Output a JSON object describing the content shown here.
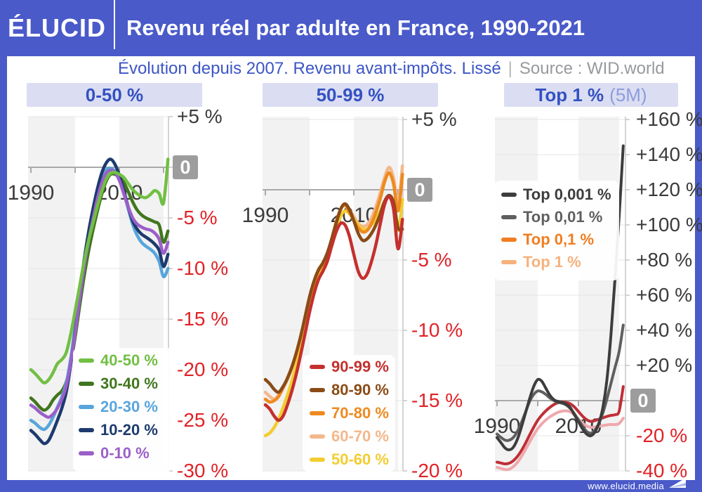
{
  "header": {
    "logo": "ÉLUCID",
    "title": "Revenu réel par adulte en France, 1990-2021"
  },
  "subtitle": {
    "left": "Évolution depuis 2007. Revenu avant-impôts. Lissé",
    "separator": "|",
    "right": "Source : WID.world"
  },
  "footer": {
    "url": "www.elucid.media"
  },
  "colors": {
    "brand_blue": "#4a5ac9",
    "band_bg": "#dbdef2",
    "band_text": "#3451c1",
    "band_suffix": "#8d9cdc",
    "positive_label": "#3b3b3b",
    "negative_label": "#e02227",
    "zero_box_bg": "#9d9d9d",
    "grid_stripe": "#f2f2f2",
    "gridline": "#e4e4e4",
    "axis_line": "#c6c6c6",
    "zero_axis": "#a9a9a9",
    "year_label": "#3b3b3b"
  },
  "chart_data": [
    {
      "type": "line",
      "id": "panel-0-50",
      "title": "0-50 %",
      "title_suffix": "",
      "xlabel": "",
      "ylabel": "",
      "x": [
        1990,
        1991,
        1992,
        1993,
        1994,
        1995,
        1996,
        1997,
        1998,
        1999,
        2000,
        2001,
        2002,
        2003,
        2004,
        2005,
        2006,
        2007,
        2008,
        2009,
        2010,
        2011,
        2012,
        2013,
        2014,
        2015,
        2016,
        2017,
        2018,
        2019,
        2020,
        2021
      ],
      "x_tick_years": [
        1990,
        2000,
        2010,
        2020
      ],
      "x_labels": [
        {
          "text": "1990",
          "year": 1990
        },
        {
          "text": "2010",
          "year": 2010
        }
      ],
      "ylim": [
        -30,
        5
      ],
      "y_labels": [
        {
          "text": "+5 %",
          "value": 5
        },
        {
          "text": "0",
          "value": 0,
          "boxed": true
        },
        {
          "text": "-5 %",
          "value": -5
        },
        {
          "text": "-10 %",
          "value": -10
        },
        {
          "text": "-15 %",
          "value": -15
        },
        {
          "text": "-20 %",
          "value": -20
        },
        {
          "text": "-25 %",
          "value": -25
        },
        {
          "text": "-30 %",
          "value": -30
        }
      ],
      "series": [
        {
          "name": "40-50 %",
          "color": "#72bf44",
          "values": [
            -20,
            -20.4,
            -20.9,
            -21.3,
            -21,
            -20.3,
            -19.4,
            -19,
            -18.3,
            -16.5,
            -14.2,
            -11.8,
            -9.4,
            -7.3,
            -5.6,
            -3.9,
            -2.4,
            -1.2,
            -0.6,
            -0.5,
            -0.7,
            -1,
            -1.6,
            -2.2,
            -2.6,
            -2.9,
            -3,
            -2.7,
            -2.3,
            -2.6,
            -3.5,
            0.8
          ]
        },
        {
          "name": "30-40 %",
          "color": "#41761e",
          "values": [
            -22.8,
            -23.2,
            -23.7,
            -24,
            -23.7,
            -23,
            -22.5,
            -22.1,
            -21.2,
            -19.4,
            -16.8,
            -13.8,
            -10.9,
            -8.4,
            -6.3,
            -4.4,
            -2.7,
            -1.4,
            -0.7,
            -0.7,
            -1,
            -1.5,
            -2.4,
            -3.4,
            -4.2,
            -4.7,
            -5,
            -5.2,
            -5.4,
            -5.7,
            -7.4,
            -6.3
          ]
        },
        {
          "name": "20-30 %",
          "color": "#58a5dc",
          "values": [
            -25,
            -25.3,
            -25.7,
            -25.9,
            -25.5,
            -24.7,
            -23.7,
            -22.7,
            -21.3,
            -18.9,
            -15.8,
            -12.5,
            -9.3,
            -6.7,
            -4.6,
            -2.7,
            -1.2,
            -0.3,
            -0.1,
            -0.4,
            -1.2,
            -2.5,
            -4.1,
            -5.6,
            -6.7,
            -7.4,
            -7.8,
            -8.1,
            -8.5,
            -9.3,
            -10.8,
            -10
          ]
        },
        {
          "name": "10-20 %",
          "color": "#1d3a6e",
          "values": [
            -26,
            -26.4,
            -26.9,
            -27.3,
            -27,
            -26.1,
            -25,
            -23.8,
            -22.2,
            -19.5,
            -16.2,
            -12.7,
            -9.3,
            -6.5,
            -4.2,
            -2.2,
            -0.6,
            0.4,
            0.8,
            0.3,
            -0.8,
            -2.3,
            -3.9,
            -5.3,
            -6.1,
            -6.6,
            -6.9,
            -7.2,
            -7.6,
            -8.2,
            -9.8,
            -8.6
          ]
        },
        {
          "name": "0-10 %",
          "color": "#9a5fc9",
          "values": [
            -23.5,
            -23.8,
            -24.2,
            -24.5,
            -24.7,
            -24.4,
            -23.8,
            -22.9,
            -21.6,
            -19.3,
            -16.4,
            -13.1,
            -10,
            -7.4,
            -5.2,
            -3.2,
            -1.6,
            -0.6,
            -0.3,
            -0.5,
            -1.3,
            -2.6,
            -3.9,
            -5,
            -5.6,
            -5.9,
            -6.1,
            -6.2,
            -6.5,
            -7.1,
            -8.5,
            -7.4
          ]
        }
      ]
    },
    {
      "type": "line",
      "id": "panel-50-99",
      "title": "50-99 %",
      "title_suffix": "",
      "xlabel": "",
      "ylabel": "",
      "x": [
        1990,
        1991,
        1992,
        1993,
        1994,
        1995,
        1996,
        1997,
        1998,
        1999,
        2000,
        2001,
        2002,
        2003,
        2004,
        2005,
        2006,
        2007,
        2008,
        2009,
        2010,
        2011,
        2012,
        2013,
        2014,
        2015,
        2016,
        2017,
        2018,
        2019,
        2020,
        2021
      ],
      "x_tick_years": [
        1990,
        2000,
        2010,
        2020
      ],
      "x_labels": [
        {
          "text": "1990",
          "year": 1990
        },
        {
          "text": "2010",
          "year": 2010
        }
      ],
      "ylim": [
        -20,
        5
      ],
      "y_labels": [
        {
          "text": "+5 %",
          "value": 5
        },
        {
          "text": "0",
          "value": 0,
          "boxed": true
        },
        {
          "text": "-5 %",
          "value": -5
        },
        {
          "text": "-10 %",
          "value": -10
        },
        {
          "text": "-15 %",
          "value": -15
        },
        {
          "text": "-20 %",
          "value": -20
        }
      ],
      "series": [
        {
          "name": "90-99 %",
          "color": "#c4302e",
          "values": [
            -15.3,
            -15.6,
            -16.1,
            -16.4,
            -16.1,
            -15.3,
            -14.3,
            -13.1,
            -11.7,
            -10.2,
            -8.7,
            -7.4,
            -6.4,
            -5.8,
            -5.1,
            -4,
            -3,
            -2.4,
            -2.5,
            -3.3,
            -4.6,
            -5.8,
            -6.3,
            -6,
            -5.1,
            -3.9,
            -2.4,
            -1,
            -0.5,
            -1.4,
            -4.2,
            -2.1
          ]
        },
        {
          "name": "80-90 %",
          "color": "#8a4b16",
          "values": [
            -13.5,
            -13.8,
            -14.2,
            -14.4,
            -14,
            -13.4,
            -12.6,
            -11.6,
            -10.4,
            -9,
            -7.6,
            -6.5,
            -5.7,
            -5.2,
            -4.5,
            -3.5,
            -2.4,
            -1.4,
            -1,
            -1.4,
            -2.2,
            -3.1,
            -3.6,
            -3.5,
            -3.1,
            -2.5,
            -1.7,
            -0.8,
            -0.4,
            -0.9,
            -2.7,
            -2.8
          ]
        },
        {
          "name": "70-80 %",
          "color": "#ee8a20",
          "values": [
            -14.9,
            -15.1,
            -15,
            -14.7,
            -14.1,
            -13.4,
            -12.6,
            -11.6,
            -10.4,
            -9.1,
            -7.7,
            -6.6,
            -5.8,
            -5.3,
            -4.6,
            -3.5,
            -2.3,
            -1.4,
            -1.1,
            -1.6,
            -2.2,
            -2.7,
            -3,
            -2.9,
            -2.4,
            -1.6,
            -0.6,
            0.6,
            1.2,
            0.4,
            -1.5,
            1.1
          ]
        },
        {
          "name": "60-70 %",
          "color": "#f3b88c",
          "values": [
            -14.4,
            -14.7,
            -14.9,
            -14.6,
            -14.1,
            -13.5,
            -12.7,
            -11.7,
            -10.5,
            -9.2,
            -7.8,
            -6.7,
            -5.9,
            -5.4,
            -4.7,
            -3.6,
            -2.4,
            -1.4,
            -1,
            -1.4,
            -1.9,
            -2.4,
            -2.6,
            -2.5,
            -2,
            -1.2,
            -0.2,
            0.9,
            1.6,
            0.8,
            -1,
            1.7
          ]
        },
        {
          "name": "50-60 %",
          "color": "#f2cd30",
          "values": [
            -17.5,
            -17.3,
            -16.9,
            -16.3,
            -15.5,
            -14.6,
            -13.6,
            -12.4,
            -11.1,
            -9.7,
            -8.3,
            -7.1,
            -6.2,
            -5.7,
            -5,
            -4,
            -2.9,
            -1.9,
            -1.5,
            -1.7,
            -2.1,
            -2.5,
            -2.8,
            -2.8,
            -2.5,
            -2.1,
            -1.5,
            -0.8,
            -0.5,
            -1.1,
            -2.9,
            -0.7
          ]
        }
      ]
    },
    {
      "type": "line",
      "id": "panel-top1",
      "title": "Top 1 %",
      "title_suffix": "(5M)",
      "xlabel": "",
      "ylabel": "",
      "x": [
        1990,
        1991,
        1992,
        1993,
        1994,
        1995,
        1996,
        1997,
        1998,
        1999,
        2000,
        2001,
        2002,
        2003,
        2004,
        2005,
        2006,
        2007,
        2008,
        2009,
        2010,
        2011,
        2012,
        2013,
        2014,
        2015,
        2016,
        2017,
        2018,
        2019,
        2020,
        2021
      ],
      "x_tick_years": [
        1990,
        2000,
        2010,
        2020
      ],
      "x_labels": [
        {
          "text": "1990",
          "year": 1990
        },
        {
          "text": "2010",
          "year": 2010
        }
      ],
      "ylim": [
        -40,
        160
      ],
      "y_labels": [
        {
          "text": "+160 %",
          "value": 160
        },
        {
          "text": "+140 %",
          "value": 140
        },
        {
          "text": "+120 %",
          "value": 120
        },
        {
          "text": "+100 %",
          "value": 100
        },
        {
          "text": "+80 %",
          "value": 80
        },
        {
          "text": "+60 %",
          "value": 60
        },
        {
          "text": "+40 %",
          "value": 40
        },
        {
          "text": "+20 %",
          "value": 20
        },
        {
          "text": "0",
          "value": 0,
          "boxed": true
        },
        {
          "text": "-20 %",
          "value": -20
        },
        {
          "text": "-40 %",
          "value": -40
        }
      ],
      "series": [
        {
          "name": "Top 0,001 %",
          "color": "#3d3d3d",
          "legend_color": "#3d3d3d",
          "values": [
            -21,
            -24,
            -27,
            -28,
            -26.5,
            -22,
            -15,
            -7,
            1,
            8,
            12,
            11,
            7,
            3,
            0.5,
            -0.5,
            -1,
            -2,
            -4,
            -8,
            -12,
            -16,
            -19,
            -20,
            -18,
            -13,
            -4,
            12,
            38,
            70,
            105,
            145
          ]
        },
        {
          "name": "Top 0,01 %",
          "color": "#5f5f5f",
          "legend_color": "#5f5f5f",
          "values": [
            -19,
            -21,
            -22.5,
            -22.5,
            -21,
            -17.5,
            -12.5,
            -6.5,
            -0.5,
            3.5,
            5.5,
            5,
            3.5,
            1.5,
            0,
            -1,
            -1.5,
            -2.5,
            -4.5,
            -7.5,
            -11,
            -14.5,
            -17.5,
            -18.5,
            -17,
            -13,
            -7,
            1,
            10,
            19,
            28,
            43
          ]
        },
        {
          "name": "Top 0,1 %",
          "color": "#c02f36",
          "legend_color": "#f07d21",
          "values": [
            -35,
            -35.5,
            -36,
            -35.6,
            -34.2,
            -31.8,
            -28.4,
            -24.2,
            -19.6,
            -15.2,
            -11.2,
            -8.2,
            -5.8,
            -3.8,
            -2.2,
            -1.2,
            -0.8,
            -1,
            -1.8,
            -3.6,
            -6.2,
            -8.8,
            -10.8,
            -11.8,
            -11.4,
            -10.6,
            -9.8,
            -9,
            -8.4,
            -8,
            -6,
            8
          ]
        },
        {
          "name": "Top 1 %",
          "color": "#efa8ac",
          "legend_color": "#f6b17c",
          "values": [
            -38,
            -38.6,
            -39.2,
            -39,
            -37.6,
            -35.2,
            -31.8,
            -27.8,
            -23.6,
            -19.6,
            -16,
            -13.2,
            -11,
            -9.2,
            -7.8,
            -6.6,
            -6,
            -5.8,
            -6.4,
            -8.2,
            -10.6,
            -12.8,
            -14.4,
            -15.2,
            -15,
            -14.6,
            -14.2,
            -13.8,
            -13.6,
            -13.6,
            -13,
            -10
          ]
        }
      ]
    }
  ]
}
